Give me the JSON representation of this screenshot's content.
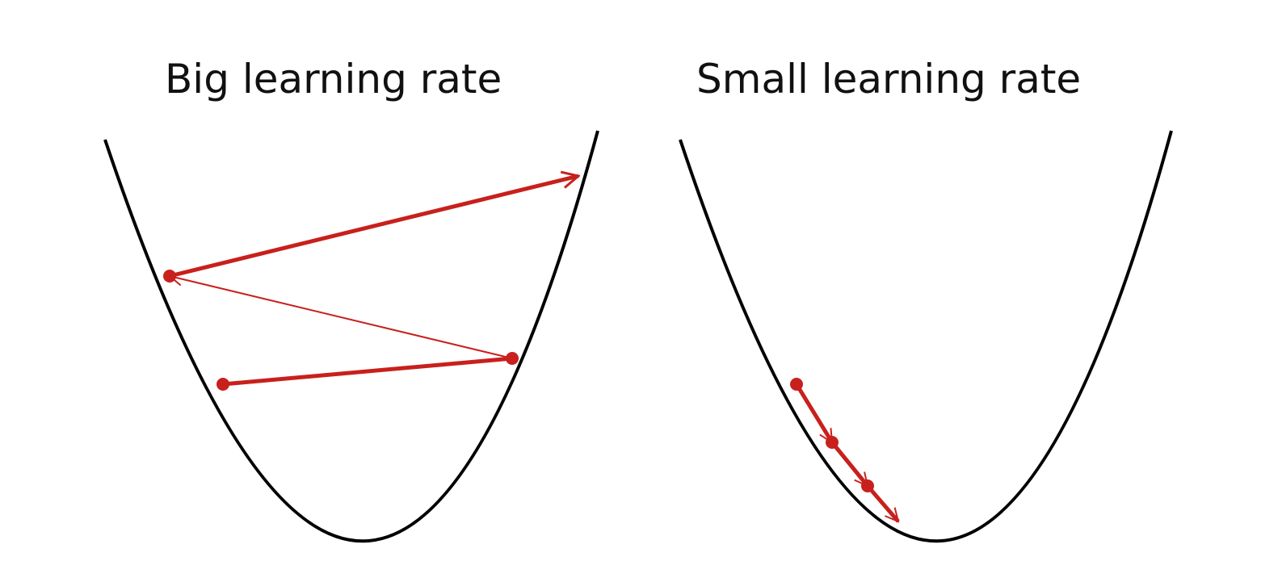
{
  "panels": {
    "big": {
      "title": "Big learning rate"
    },
    "small": {
      "title": "Small learning rate"
    }
  },
  "colors": {
    "curve": "#000000",
    "step": "#c8201c",
    "background": "#ffffff"
  }
}
